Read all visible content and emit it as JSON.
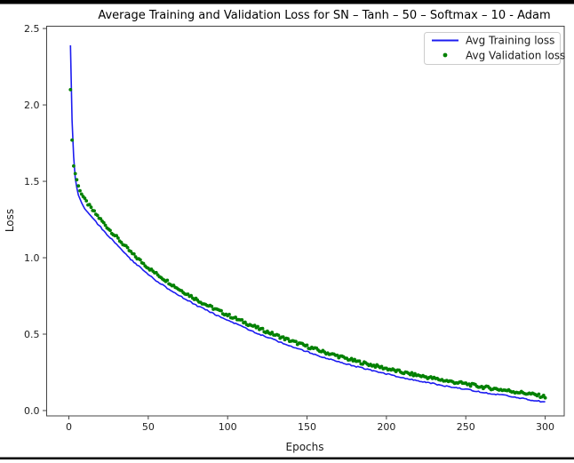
{
  "window": {
    "frame_color": "#000000",
    "background": "#ffffff"
  },
  "chart_data": {
    "type": "line",
    "title": "Average Training and Validation Loss for SN – Tanh – 50 – Softmax – 10 - Adam",
    "xlabel": "Epochs",
    "ylabel": "Loss",
    "xlim": [
      -14,
      312
    ],
    "ylim": [
      -0.035,
      2.515
    ],
    "xticks": [
      0,
      50,
      100,
      150,
      200,
      250,
      300
    ],
    "yticks": [
      0.0,
      0.5,
      1.0,
      1.5,
      2.0,
      2.5
    ],
    "grid": false,
    "epoch_range": [
      1,
      300
    ],
    "legend": {
      "position": "upper-right",
      "border_color": "#cccccc",
      "background": "#ffffff"
    },
    "series": [
      {
        "name": "Avg Training loss",
        "color": "#1c1cf0",
        "style": "line",
        "points": [
          [
            1,
            2.39
          ],
          [
            2,
            1.9
          ],
          [
            3,
            1.66
          ],
          [
            4,
            1.52
          ],
          [
            5,
            1.46
          ],
          [
            6,
            1.41
          ],
          [
            8,
            1.36
          ],
          [
            10,
            1.32
          ],
          [
            15,
            1.26
          ],
          [
            20,
            1.2
          ],
          [
            25,
            1.14
          ],
          [
            30,
            1.09
          ],
          [
            35,
            1.03
          ],
          [
            40,
            0.98
          ],
          [
            45,
            0.935
          ],
          [
            50,
            0.89
          ],
          [
            55,
            0.85
          ],
          [
            60,
            0.815
          ],
          [
            65,
            0.78
          ],
          [
            70,
            0.75
          ],
          [
            75,
            0.72
          ],
          [
            80,
            0.69
          ],
          [
            85,
            0.665
          ],
          [
            90,
            0.64
          ],
          [
            95,
            0.615
          ],
          [
            100,
            0.59
          ],
          [
            110,
            0.545
          ],
          [
            120,
            0.5
          ],
          [
            130,
            0.46
          ],
          [
            140,
            0.42
          ],
          [
            150,
            0.385
          ],
          [
            160,
            0.35
          ],
          [
            170,
            0.32
          ],
          [
            180,
            0.29
          ],
          [
            190,
            0.265
          ],
          [
            200,
            0.24
          ],
          [
            210,
            0.215
          ],
          [
            220,
            0.195
          ],
          [
            230,
            0.175
          ],
          [
            240,
            0.155
          ],
          [
            250,
            0.14
          ],
          [
            260,
            0.12
          ],
          [
            270,
            0.105
          ],
          [
            280,
            0.09
          ],
          [
            290,
            0.07
          ],
          [
            300,
            0.055
          ]
        ]
      },
      {
        "name": "Avg Validation loss",
        "color": "#008000",
        "style": "dots",
        "points": [
          [
            1,
            2.1
          ],
          [
            2,
            1.77
          ],
          [
            3,
            1.6
          ],
          [
            4,
            1.55
          ],
          [
            5,
            1.51
          ],
          [
            6,
            1.47
          ],
          [
            8,
            1.42
          ],
          [
            10,
            1.38
          ],
          [
            15,
            1.31
          ],
          [
            20,
            1.25
          ],
          [
            25,
            1.19
          ],
          [
            30,
            1.135
          ],
          [
            35,
            1.08
          ],
          [
            40,
            1.025
          ],
          [
            45,
            0.98
          ],
          [
            50,
            0.935
          ],
          [
            55,
            0.895
          ],
          [
            60,
            0.86
          ],
          [
            65,
            0.825
          ],
          [
            70,
            0.79
          ],
          [
            75,
            0.76
          ],
          [
            80,
            0.73
          ],
          [
            85,
            0.7
          ],
          [
            90,
            0.675
          ],
          [
            95,
            0.65
          ],
          [
            100,
            0.625
          ],
          [
            110,
            0.58
          ],
          [
            120,
            0.535
          ],
          [
            130,
            0.495
          ],
          [
            140,
            0.455
          ],
          [
            150,
            0.42
          ],
          [
            160,
            0.385
          ],
          [
            170,
            0.355
          ],
          [
            180,
            0.325
          ],
          [
            190,
            0.3
          ],
          [
            200,
            0.275
          ],
          [
            210,
            0.25
          ],
          [
            220,
            0.23
          ],
          [
            230,
            0.21
          ],
          [
            240,
            0.19
          ],
          [
            250,
            0.175
          ],
          [
            260,
            0.155
          ],
          [
            270,
            0.14
          ],
          [
            280,
            0.125
          ],
          [
            290,
            0.11
          ],
          [
            300,
            0.09
          ]
        ]
      }
    ]
  }
}
